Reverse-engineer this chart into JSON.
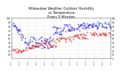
{
  "title": "Milwaukee Weather Outdoor Humidity\nvs Temperature\nEvery 5 Minutes",
  "title_fontsize": 3.5,
  "background_color": "#ffffff",
  "grid_color": "#bbbbbb",
  "blue_color": "#0000dd",
  "red_color": "#dd0000",
  "cyan_color": "#0099cc",
  "xlim": [
    0,
    288
  ],
  "ylim": [
    0,
    100
  ],
  "ytick_interval": 10,
  "xtick_interval": 24
}
